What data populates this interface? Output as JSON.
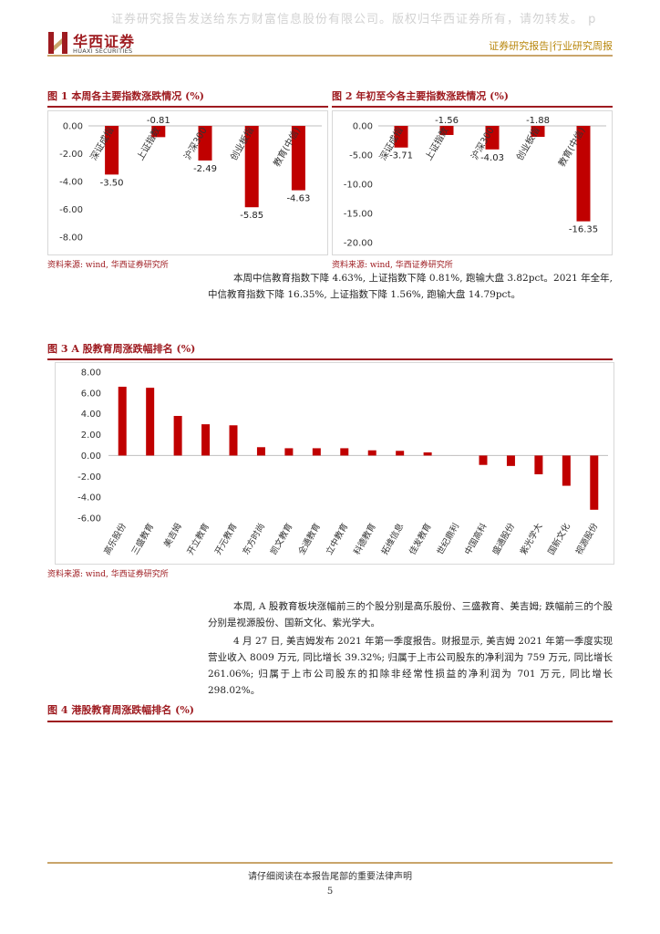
{
  "watermark": "证券研究报告发送给东方财富信息股份有限公司。版权归华西证券所有，请勿转发。 p",
  "header": {
    "logo_cn": "华西证券",
    "logo_en": "HUAXI SECURITIES",
    "right_text": "证券研究报告|行业研究周报"
  },
  "figures": {
    "fig1_title": "图 1 本周各主要指数涨跌情况 (%)",
    "fig2_title": "图 2 年初至今各主要指数涨跌情况 (%)",
    "fig3_title": "图 3 A 股教育周涨跌幅排名 (%)",
    "fig4_title": "图 4 港股教育周涨跌幅排名 (%)",
    "source": "资料来源: wind, 华西证券研究所"
  },
  "paragraphs": {
    "p1": "本周中信教育指数下降 4.63%, 上证指数下降 0.81%, 跑输大盘 3.82pct。2021 年全年, 中信教育指数下降 16.35%, 上证指数下降 1.56%, 跑输大盘 14.79pct。",
    "p2": "本周, A 股教育板块涨幅前三的个股分别是高乐股份、三盛教育、美吉姆; 跌幅前三的个股分别是视源股份、国新文化、紫光学大。",
    "p3": "4 月 27 日, 美吉姆发布 2021 年第一季度报告。财报显示, 美吉姆 2021 年第一季度实现营业收入 8009 万元, 同比增长 39.32%; 归属于上市公司股东的净利润为 759 万元, 同比增长 261.06%; 归属于上市公司股东的扣除非经常性损益的净利润为 701 万元, 同比增长 298.02%。"
  },
  "footer": {
    "text": "请仔细阅读在本报告尾部的重要法律声明",
    "page": "5"
  },
  "colors": {
    "bar": "#c00000",
    "accent": "#9e1b20",
    "gold": "#c9a56b"
  },
  "chart_data": [
    {
      "type": "bar",
      "categories": [
        "深证成指",
        "上证指数",
        "沪深300",
        "创业板指",
        "教育(中信)"
      ],
      "values": [
        -3.5,
        -0.81,
        -2.49,
        -5.85,
        -4.63
      ],
      "value_labels": [
        "-3.50",
        "-0.81",
        "-2.49",
        "-5.85",
        "-4.63"
      ],
      "ylim": [
        -8,
        0
      ],
      "yticks": [
        "0.00",
        "-2.00",
        "-4.00",
        "-6.00",
        "-8.00"
      ]
    },
    {
      "type": "bar",
      "categories": [
        "深证成指",
        "上证指数",
        "沪深300",
        "创业板指",
        "教育(中信)"
      ],
      "values": [
        -3.71,
        -1.56,
        -4.03,
        -1.88,
        -16.35
      ],
      "value_labels": [
        "-3.71",
        "-1.56",
        "-4.03",
        "-1.88",
        "-16.35"
      ],
      "ylim": [
        -20,
        0
      ],
      "yticks": [
        "0.00",
        "-5.00",
        "-10.00",
        "-15.00",
        "-20.00"
      ]
    },
    {
      "type": "bar",
      "categories": [
        "高乐股份",
        "三盛教育",
        "美吉姆",
        "开立教育",
        "开元教育",
        "东方时尚",
        "凯文教育",
        "全通教育",
        "立中教育",
        "科德教育",
        "拓维信息",
        "佳发教育",
        "世纪鼎利",
        "中国高科",
        "盛通股份",
        "紫光学大",
        "国新文化",
        "视源股份"
      ],
      "values": [
        6.6,
        6.5,
        3.8,
        3.0,
        2.9,
        0.8,
        0.7,
        0.7,
        0.7,
        0.5,
        0.45,
        0.3,
        0.0,
        -0.9,
        -1.0,
        -1.8,
        -2.9,
        -5.2
      ],
      "ylim": [
        -6,
        8
      ],
      "yticks": [
        "8.00",
        "6.00",
        "4.00",
        "2.00",
        "0.00",
        "-2.00",
        "-4.00",
        "-6.00"
      ]
    }
  ]
}
